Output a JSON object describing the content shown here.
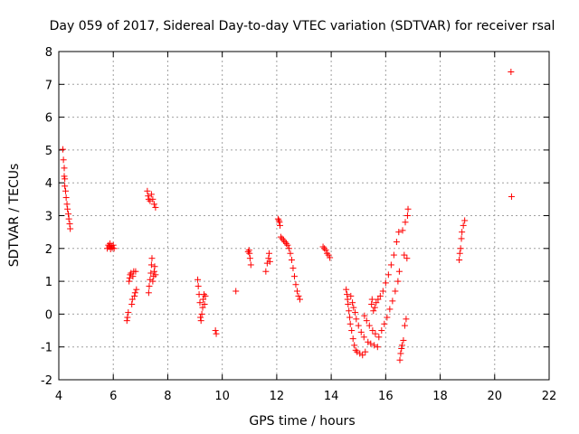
{
  "chart_data": {
    "type": "scatter",
    "title": "Day 059 of 2017, Sidereal Day-to-day VTEC variation (SDTVAR) for receiver rsal",
    "xlabel": "GPS time / hours",
    "ylabel": "SDTVAR / TECUs",
    "xlim": [
      4,
      22
    ],
    "ylim": [
      -2,
      8
    ],
    "xticks": [
      "4",
      "6",
      "8",
      "10",
      "12",
      "14",
      "16",
      "18",
      "20",
      "22"
    ],
    "yticks": [
      "-2",
      "-1",
      "0",
      "1",
      "2",
      "3",
      "4",
      "5",
      "6",
      "7",
      "8"
    ],
    "grid": true,
    "marker": "plus",
    "series": [
      {
        "name": "SDTVAR",
        "color": "#ff0000",
        "points": [
          [
            4.15,
            5.02
          ],
          [
            4.17,
            4.7
          ],
          [
            4.2,
            4.45
          ],
          [
            4.2,
            4.2
          ],
          [
            4.22,
            4.12
          ],
          [
            4.22,
            3.9
          ],
          [
            4.25,
            3.75
          ],
          [
            4.27,
            3.55
          ],
          [
            4.3,
            3.35
          ],
          [
            4.32,
            3.2
          ],
          [
            4.35,
            3.05
          ],
          [
            4.37,
            2.9
          ],
          [
            4.4,
            2.75
          ],
          [
            4.42,
            2.6
          ],
          [
            5.78,
            2.0
          ],
          [
            5.82,
            2.1
          ],
          [
            5.85,
            2.05
          ],
          [
            5.88,
            2.15
          ],
          [
            5.9,
            1.98
          ],
          [
            5.93,
            2.08
          ],
          [
            5.96,
            2.02
          ],
          [
            6.0,
            2.1
          ],
          [
            6.03,
            2.0
          ],
          [
            6.5,
            -0.2
          ],
          [
            6.52,
            -0.1
          ],
          [
            6.55,
            0.05
          ],
          [
            6.58,
            1.0
          ],
          [
            6.6,
            1.1
          ],
          [
            6.62,
            1.2
          ],
          [
            6.65,
            1.25
          ],
          [
            6.68,
            0.3
          ],
          [
            6.7,
            0.45
          ],
          [
            6.72,
            1.15
          ],
          [
            6.75,
            1.3
          ],
          [
            6.78,
            0.55
          ],
          [
            6.8,
            0.65
          ],
          [
            6.82,
            1.3
          ],
          [
            6.85,
            0.75
          ],
          [
            7.25,
            3.75
          ],
          [
            7.28,
            3.6
          ],
          [
            7.3,
            3.5
          ],
          [
            7.3,
            0.65
          ],
          [
            7.32,
            0.85
          ],
          [
            7.35,
            1.05
          ],
          [
            7.35,
            3.45
          ],
          [
            7.38,
            1.25
          ],
          [
            7.4,
            1.5
          ],
          [
            7.4,
            3.65
          ],
          [
            7.42,
            1.7
          ],
          [
            7.45,
            1.0
          ],
          [
            7.45,
            3.5
          ],
          [
            7.48,
            1.15
          ],
          [
            7.5,
            1.3
          ],
          [
            7.5,
            3.35
          ],
          [
            7.52,
            1.45
          ],
          [
            7.55,
            1.2
          ],
          [
            7.55,
            3.25
          ],
          [
            9.1,
            1.05
          ],
          [
            9.12,
            0.85
          ],
          [
            9.15,
            0.6
          ],
          [
            9.18,
            0.35
          ],
          [
            9.2,
            -0.1
          ],
          [
            9.22,
            -0.2
          ],
          [
            9.25,
            0.0
          ],
          [
            9.28,
            0.2
          ],
          [
            9.3,
            0.45
          ],
          [
            9.33,
            0.6
          ],
          [
            9.35,
            0.3
          ],
          [
            9.38,
            0.55
          ],
          [
            9.75,
            -0.5
          ],
          [
            9.78,
            -0.6
          ],
          [
            10.5,
            0.7
          ],
          [
            10.95,
            1.9
          ],
          [
            10.98,
            1.95
          ],
          [
            11.0,
            1.85
          ],
          [
            11.02,
            1.7
          ],
          [
            11.05,
            1.5
          ],
          [
            11.6,
            1.3
          ],
          [
            11.65,
            1.55
          ],
          [
            11.7,
            1.7
          ],
          [
            11.72,
            1.85
          ],
          [
            11.75,
            1.6
          ],
          [
            12.05,
            2.9
          ],
          [
            12.08,
            2.85
          ],
          [
            12.1,
            2.8
          ],
          [
            12.12,
            2.7
          ],
          [
            12.15,
            2.35
          ],
          [
            12.2,
            2.3
          ],
          [
            12.25,
            2.25
          ],
          [
            12.3,
            2.2
          ],
          [
            12.35,
            2.15
          ],
          [
            12.4,
            2.1
          ],
          [
            12.45,
            2.0
          ],
          [
            12.5,
            1.85
          ],
          [
            12.55,
            1.65
          ],
          [
            12.6,
            1.4
          ],
          [
            12.65,
            1.15
          ],
          [
            12.7,
            0.9
          ],
          [
            12.75,
            0.7
          ],
          [
            12.8,
            0.55
          ],
          [
            12.85,
            0.45
          ],
          [
            13.7,
            2.05
          ],
          [
            13.75,
            2.0
          ],
          [
            13.8,
            1.95
          ],
          [
            13.85,
            1.85
          ],
          [
            13.9,
            1.8
          ],
          [
            13.95,
            1.72
          ],
          [
            14.55,
            0.75
          ],
          [
            14.58,
            0.6
          ],
          [
            14.6,
            0.45
          ],
          [
            14.62,
            0.3
          ],
          [
            14.65,
            0.1
          ],
          [
            14.68,
            -0.1
          ],
          [
            14.7,
            -0.3
          ],
          [
            14.72,
            0.55
          ],
          [
            14.75,
            -0.5
          ],
          [
            14.78,
            0.35
          ],
          [
            14.8,
            -0.75
          ],
          [
            14.82,
            0.2
          ],
          [
            14.85,
            -0.95
          ],
          [
            14.88,
            0.05
          ],
          [
            14.9,
            -1.1
          ],
          [
            14.92,
            -0.15
          ],
          [
            14.95,
            -1.15
          ],
          [
            15.0,
            -0.35
          ],
          [
            15.05,
            -1.2
          ],
          [
            15.1,
            -0.55
          ],
          [
            15.15,
            -1.25
          ],
          [
            15.2,
            -0.7
          ],
          [
            15.22,
            -0.05
          ],
          [
            15.25,
            -1.15
          ],
          [
            15.3,
            -0.2
          ],
          [
            15.35,
            -0.85
          ],
          [
            15.4,
            -0.35
          ],
          [
            15.45,
            -0.9
          ],
          [
            15.48,
            0.3
          ],
          [
            15.5,
            0.45
          ],
          [
            15.52,
            -0.5
          ],
          [
            15.55,
            0.1
          ],
          [
            15.58,
            -0.95
          ],
          [
            15.6,
            0.2
          ],
          [
            15.62,
            -0.6
          ],
          [
            15.65,
            0.35
          ],
          [
            15.7,
            -1.0
          ],
          [
            15.72,
            0.45
          ],
          [
            15.75,
            -0.7
          ],
          [
            15.8,
            0.55
          ],
          [
            15.85,
            -0.5
          ],
          [
            15.9,
            0.7
          ],
          [
            15.95,
            -0.3
          ],
          [
            16.0,
            0.95
          ],
          [
            16.05,
            -0.1
          ],
          [
            16.1,
            1.2
          ],
          [
            16.15,
            0.15
          ],
          [
            16.2,
            1.5
          ],
          [
            16.25,
            0.4
          ],
          [
            16.3,
            1.8
          ],
          [
            16.35,
            0.7
          ],
          [
            16.4,
            2.2
          ],
          [
            16.45,
            1.0
          ],
          [
            16.48,
            2.5
          ],
          [
            16.5,
            1.3
          ],
          [
            16.52,
            -1.4
          ],
          [
            16.55,
            -1.2
          ],
          [
            16.58,
            -1.05
          ],
          [
            16.6,
            -0.95
          ],
          [
            16.62,
            2.55
          ],
          [
            16.65,
            -0.8
          ],
          [
            16.68,
            1.8
          ],
          [
            16.7,
            -0.35
          ],
          [
            16.72,
            2.8
          ],
          [
            16.75,
            -0.15
          ],
          [
            16.78,
            1.7
          ],
          [
            16.8,
            3.0
          ],
          [
            16.82,
            3.2
          ],
          [
            18.7,
            1.65
          ],
          [
            18.72,
            1.85
          ],
          [
            18.75,
            2.0
          ],
          [
            18.78,
            2.3
          ],
          [
            18.8,
            2.5
          ],
          [
            18.85,
            2.7
          ],
          [
            18.9,
            2.85
          ],
          [
            20.6,
            7.38
          ],
          [
            20.62,
            3.58
          ]
        ]
      }
    ]
  }
}
